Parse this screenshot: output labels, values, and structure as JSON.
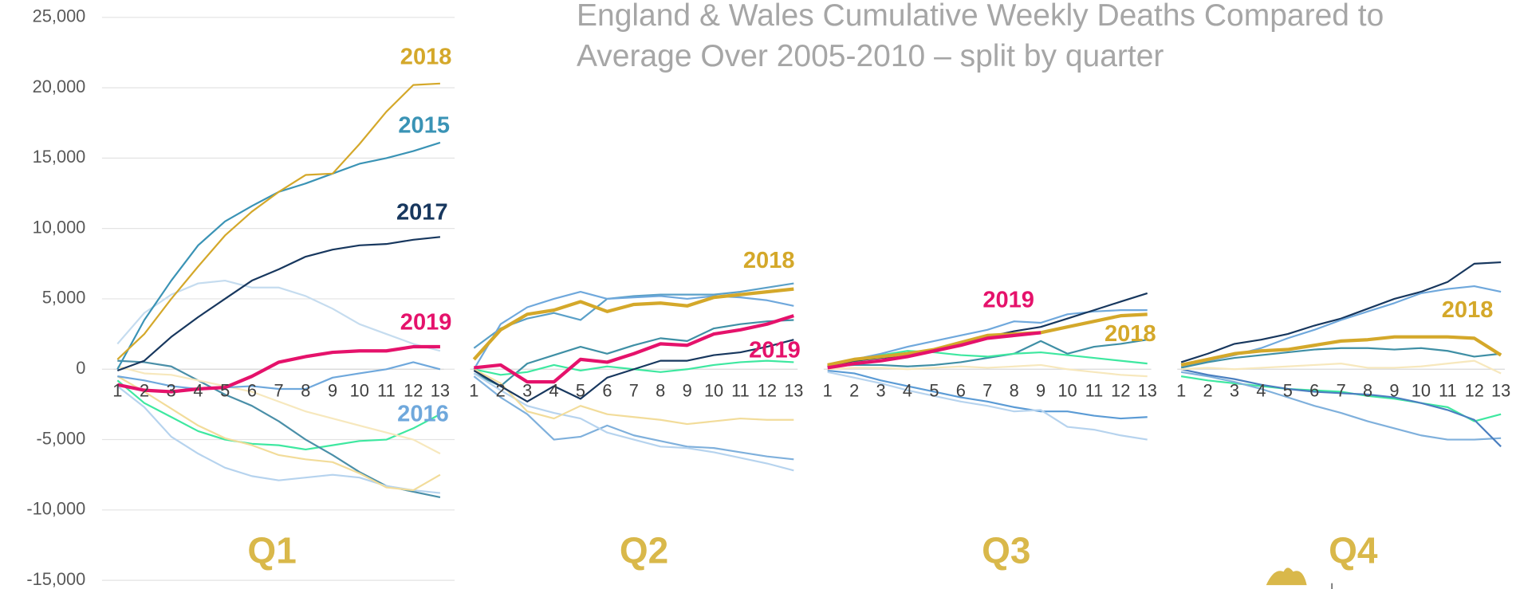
{
  "title": "England & Wales Cumulative Weekly Deaths Compared to Average Over 2005-2010 – split by quarter",
  "chart_data": [
    {
      "type": "line",
      "title": "Q1",
      "categories": [
        1,
        2,
        3,
        4,
        5,
        6,
        7,
        8,
        9,
        10,
        11,
        12,
        13
      ],
      "ylim": [
        -15000,
        25000
      ],
      "grid": true,
      "yticks": [
        {
          "value": -15000,
          "label": "-15,000"
        },
        {
          "value": -10000,
          "label": "-10,000"
        },
        {
          "value": -5000,
          "label": "-5,000"
        },
        0,
        {
          "value": 5000,
          "label": "5,000"
        },
        {
          "value": 10000,
          "label": "10,000"
        },
        {
          "value": 15000,
          "label": "15,000"
        },
        {
          "value": 20000,
          "label": "20,000"
        },
        {
          "value": 25000,
          "label": "25,000"
        }
      ],
      "series": [
        {
          "color": "#c5dcef",
          "values": [
            1800,
            4000,
            5300,
            6100,
            6300,
            5800,
            5800,
            5200,
            4300,
            3200,
            2500,
            1800,
            1300
          ]
        },
        {
          "color": "#3ee8a0",
          "values": [
            -800,
            -2400,
            -3400,
            -4400,
            -5000,
            -5300,
            -5400,
            -5700,
            -5400,
            -5100,
            -5000,
            -4200,
            -3200
          ]
        },
        {
          "color": "#4a8fa8",
          "values": [
            600,
            500,
            200,
            -800,
            -1800,
            -2600,
            -3700,
            -5000,
            -6100,
            -7300,
            -8300,
            -8700,
            -9100
          ]
        },
        {
          "color": "#b6d3ee",
          "values": [
            -1200,
            -2700,
            -4800,
            -6000,
            -7000,
            -7600,
            -7900,
            -7700,
            -7500,
            -7700,
            -8300,
            -8600,
            -8800
          ]
        },
        {
          "color": "#f2dc9a",
          "values": [
            -500,
            -1600,
            -2800,
            -4000,
            -4900,
            -5400,
            -6100,
            -6400,
            -6600,
            -7400,
            -8400,
            -8600,
            -7500
          ]
        },
        {
          "color": "#f7e8bd",
          "values": [
            200,
            -300,
            -400,
            -800,
            -1200,
            -1600,
            -2300,
            -3000,
            -3500,
            -4000,
            -4500,
            -5000,
            -6000
          ]
        },
        {
          "name": "2016",
          "color": "#6fa8dc",
          "values": [
            -500,
            -800,
            -1200,
            -1400,
            -1300,
            -1200,
            -1400,
            -1400,
            -600,
            -300,
            0,
            500,
            0
          ]
        },
        {
          "name": "2015",
          "color": "#3a93b5",
          "values": [
            0,
            3500,
            6300,
            8800,
            10500,
            11600,
            12600,
            13200,
            13900,
            14600,
            15000,
            15500,
            16100
          ]
        },
        {
          "name": "2017",
          "color": "#17375e",
          "values": [
            -100,
            600,
            2300,
            3700,
            5000,
            6300,
            7100,
            8000,
            8500,
            8800,
            8900,
            9200,
            9400
          ]
        },
        {
          "name": "2018",
          "color": "#d4a82a",
          "values": [
            700,
            2500,
            5000,
            7300,
            9500,
            11200,
            12600,
            13800,
            13900,
            16000,
            18300,
            20200,
            20300
          ]
        },
        {
          "name": "2019",
          "color": "#e5126b",
          "values": [
            -1100,
            -1500,
            -1600,
            -1400,
            -1300,
            -500,
            500,
            900,
            1200,
            1300,
            1300,
            1600,
            1600
          ]
        }
      ]
    },
    {
      "type": "line",
      "title": "Q2",
      "categories": [
        1,
        2,
        3,
        4,
        5,
        6,
        7,
        8,
        9,
        10,
        11,
        12,
        13
      ],
      "ylim": [
        -15000,
        25000
      ],
      "series": [
        {
          "color": "#5aa0c8",
          "values": [
            1500,
            2900,
            3600,
            4000,
            3500,
            5000,
            5200,
            5300,
            5300,
            5300,
            5500,
            5800,
            6100
          ]
        },
        {
          "color": "#3f8fa5",
          "values": [
            -300,
            -1200,
            400,
            1000,
            1600,
            1100,
            1700,
            2200,
            2000,
            2900,
            3200,
            3400,
            3500
          ]
        },
        {
          "color": "#6fa8dc",
          "values": [
            0,
            3200,
            4400,
            5000,
            5500,
            5000,
            5100,
            5200,
            5000,
            5200,
            5100,
            4900,
            4500
          ]
        },
        {
          "color": "#3ee8a0",
          "values": [
            0,
            -400,
            -200,
            300,
            -100,
            200,
            0,
            -200,
            0,
            300,
            500,
            600,
            500
          ]
        },
        {
          "color": "#7fb0dc",
          "values": [
            -500,
            -2000,
            -3200,
            -5000,
            -4800,
            -4000,
            -4700,
            -5100,
            -5500,
            -5600,
            -5900,
            -6200,
            -6400
          ]
        },
        {
          "color": "#b6d3ee",
          "values": [
            -300,
            -1500,
            -2600,
            -3100,
            -3500,
            -4500,
            -5000,
            -5500,
            -5600,
            -5900,
            -6300,
            -6700,
            -7200
          ]
        },
        {
          "color": "#f2dc9a",
          "values": [
            0,
            -1000,
            -3000,
            -3500,
            -2600,
            -3200,
            -3400,
            -3600,
            -3900,
            -3700,
            -3500,
            -3600,
            -3600
          ]
        },
        {
          "color": "#17375e",
          "values": [
            -100,
            -1200,
            -2300,
            -1200,
            -2100,
            -600,
            0,
            600,
            600,
            1000,
            1200,
            1600,
            2100
          ]
        },
        {
          "name": "2019",
          "color": "#e5126b",
          "values": [
            100,
            300,
            -900,
            -900,
            700,
            500,
            1100,
            1800,
            1700,
            2500,
            2800,
            3200,
            3800
          ]
        },
        {
          "name": "2018",
          "color": "#d4a82a",
          "values": [
            700,
            2800,
            3900,
            4200,
            4800,
            4100,
            4600,
            4700,
            4500,
            5100,
            5300,
            5500,
            5700
          ]
        }
      ]
    },
    {
      "type": "line",
      "title": "Q3",
      "categories": [
        1,
        2,
        3,
        4,
        5,
        6,
        7,
        8,
        9,
        10,
        11,
        12,
        13
      ],
      "ylim": [
        -15000,
        25000
      ],
      "series": [
        {
          "color": "#6fa8dc",
          "values": [
            300,
            700,
            1100,
            1600,
            2000,
            2400,
            2800,
            3400,
            3300,
            3900,
            4100,
            4200,
            4200
          ]
        },
        {
          "color": "#3f8fa5",
          "values": [
            200,
            300,
            300,
            200,
            300,
            500,
            800,
            1100,
            2000,
            1100,
            1600,
            1800,
            2100
          ]
        },
        {
          "color": "#3ee8a0",
          "values": [
            300,
            500,
            1000,
            1300,
            1200,
            1000,
            900,
            1100,
            1200,
            1000,
            800,
            600,
            400
          ]
        },
        {
          "color": "#5b9bd5",
          "values": [
            -100,
            -300,
            -800,
            -1200,
            -1600,
            -2000,
            -2300,
            -2700,
            -3000,
            -3000,
            -3300,
            -3500,
            -3400
          ]
        },
        {
          "color": "#b6d3ee",
          "values": [
            -200,
            -600,
            -1000,
            -1500,
            -1900,
            -2300,
            -2600,
            -3000,
            -2900,
            -4100,
            -4300,
            -4700,
            -5000
          ]
        },
        {
          "color": "#f7e8bd",
          "values": [
            0,
            100,
            100,
            0,
            100,
            200,
            100,
            200,
            300,
            0,
            -200,
            -400,
            -500
          ]
        },
        {
          "color": "#17375e",
          "values": [
            200,
            600,
            800,
            1000,
            1300,
            1800,
            2300,
            2700,
            3000,
            3600,
            4200,
            4800,
            5400
          ]
        },
        {
          "name": "2018",
          "color": "#d4a82a",
          "values": [
            300,
            700,
            900,
            1100,
            1400,
            1900,
            2400,
            2500,
            2600,
            3000,
            3400,
            3800,
            3900
          ]
        },
        {
          "name": "2019",
          "color": "#e5126b",
          "values": [
            100,
            400,
            600,
            900,
            1300,
            1700,
            2200,
            2400,
            2600,
            null,
            null,
            null,
            null
          ]
        }
      ]
    },
    {
      "type": "line",
      "title": "Q4",
      "categories": [
        1,
        2,
        3,
        4,
        5,
        6,
        7,
        8,
        9,
        10,
        11,
        12,
        13
      ],
      "ylim": [
        -15000,
        25000
      ],
      "series": [
        {
          "color": "#17375e",
          "values": [
            500,
            1100,
            1800,
            2100,
            2500,
            3100,
            3600,
            4300,
            5000,
            5500,
            6200,
            7500,
            7600
          ]
        },
        {
          "color": "#6fa8dc",
          "values": [
            200,
            600,
            1000,
            1500,
            2200,
            2800,
            3500,
            4100,
            4700,
            5400,
            5700,
            5900,
            5500
          ]
        },
        {
          "color": "#3f8fa5",
          "values": [
            100,
            500,
            800,
            1000,
            1200,
            1400,
            1500,
            1500,
            1400,
            1500,
            1300,
            900,
            1100
          ]
        },
        {
          "color": "#3ee8a0",
          "values": [
            -500,
            -800,
            -1000,
            -1200,
            -1400,
            -1500,
            -1600,
            -1900,
            -2100,
            -2400,
            -2700,
            -3700,
            -3200
          ]
        },
        {
          "color": "#7fb0dc",
          "values": [
            -200,
            -500,
            -900,
            -1400,
            -2000,
            -2600,
            -3100,
            -3700,
            -4200,
            -4700,
            -5000,
            -5000,
            -4900
          ]
        },
        {
          "color": "#4a7fc0",
          "values": [
            0,
            -400,
            -700,
            -1100,
            -1400,
            -1600,
            -1700,
            -1800,
            -2000,
            -2400,
            -2900,
            -3600,
            -5500
          ]
        },
        {
          "color": "#f7e8bd",
          "values": [
            0,
            100,
            0,
            100,
            200,
            300,
            400,
            100,
            100,
            200,
            400,
            600,
            -300
          ]
        },
        {
          "name": "2018",
          "color": "#d4a82a",
          "values": [
            300,
            700,
            1100,
            1300,
            1400,
            1700,
            2000,
            2100,
            2300,
            2300,
            2300,
            2200,
            1000
          ]
        }
      ]
    }
  ]
}
